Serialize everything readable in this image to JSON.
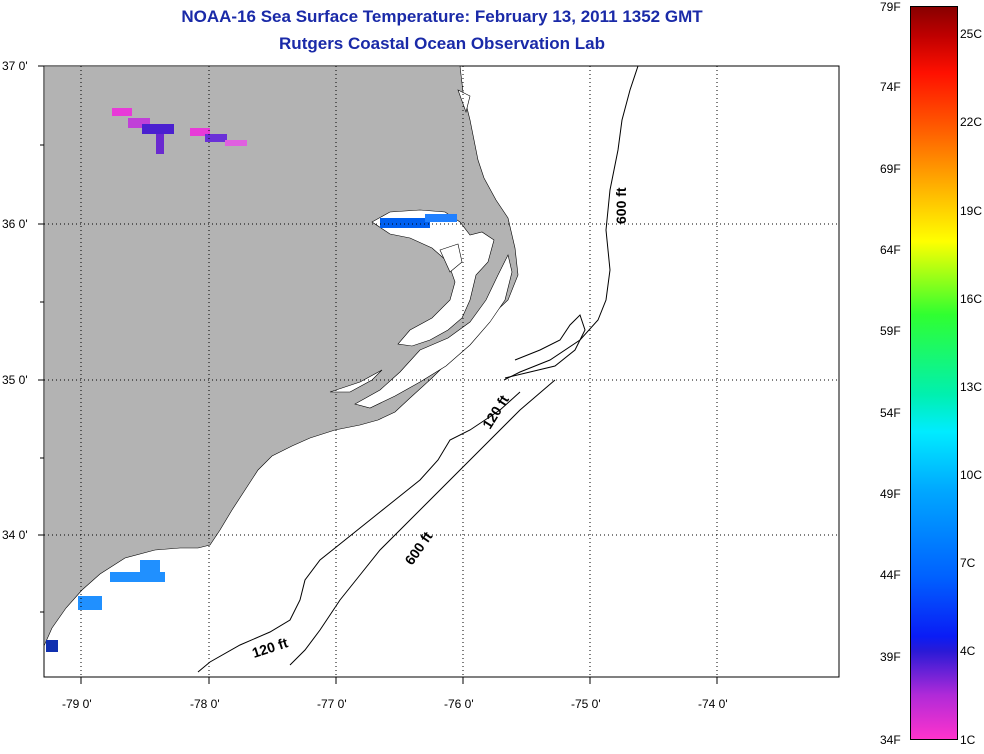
{
  "title": {
    "line1": "NOAA-16 Sea Surface Temperature:  February 13, 2011 1352 GMT",
    "line2": "Rutgers Coastal Ocean Observation Lab"
  },
  "map": {
    "lat_labels": [
      "37 0'",
      "36 0'",
      "35 0'",
      "34 0'"
    ],
    "lon_labels": [
      "-79 0'",
      "-78 0'",
      "-77 0'",
      "-76 0'",
      "-75 0'",
      "-74 0'"
    ],
    "contour_labels": [
      "600 ft",
      "120 ft",
      "600 ft",
      "120 ft"
    ],
    "land_color": "#b3b3b3",
    "ocean_color": "#ffffff"
  },
  "colorbar": {
    "fahrenheit": [
      "79F",
      "74F",
      "69F",
      "64F",
      "59F",
      "54F",
      "49F",
      "44F",
      "39F",
      "34F"
    ],
    "celsius": [
      "25C",
      "22C",
      "19C",
      "16C",
      "13C",
      "10C",
      "7C",
      "4C",
      "1C"
    ]
  }
}
